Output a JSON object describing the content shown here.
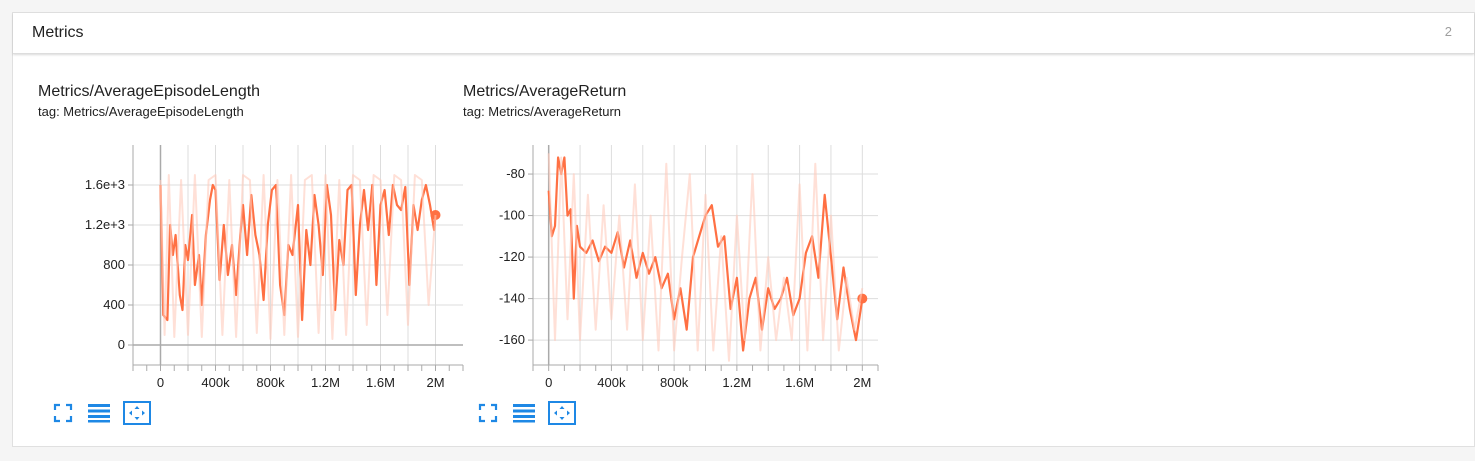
{
  "section": {
    "title": "Metrics",
    "count": "2"
  },
  "colors": {
    "line": "#ff7043",
    "faint": "#ffccbc",
    "icon": "#1e88e5",
    "grid": "#dddddd",
    "axis": "#aaaaaa"
  },
  "buttons": [
    {
      "icon": "fullscreen-icon"
    },
    {
      "icon": "toggle-log-scale-icon"
    },
    {
      "icon": "fit-domain-icon"
    }
  ],
  "cards": [
    {
      "title": "Metrics/AverageEpisodeLength",
      "tag": "tag: Metrics/AverageEpisodeLength"
    },
    {
      "title": "Metrics/AverageReturn",
      "tag": "tag: Metrics/AverageReturn"
    }
  ],
  "chart_data": [
    {
      "type": "line",
      "title": "Metrics/AverageEpisodeLength",
      "xlim": [
        -200000,
        2200000
      ],
      "ylim": [
        -200,
        2000
      ],
      "x_ticks": [
        0,
        200000,
        400000,
        600000,
        800000,
        1000000,
        1200000,
        1400000,
        1600000,
        1800000,
        2000000
      ],
      "x_tick_labels": [
        "0",
        "",
        "400k",
        "",
        "800k",
        "",
        "1.2M",
        "",
        "1.6M",
        "",
        "2M"
      ],
      "y_ticks": [
        0,
        400,
        800,
        1200,
        1600
      ],
      "y_tick_labels": [
        "0",
        "400",
        "800",
        "1.2e+3",
        "1.6e+3"
      ],
      "grid": true,
      "series": [
        {
          "role": "smoothed",
          "x": [
            0,
            20000,
            50000,
            70000,
            90000,
            110000,
            140000,
            160000,
            180000,
            200000,
            230000,
            250000,
            280000,
            300000,
            330000,
            360000,
            380000,
            400000,
            430000,
            460000,
            490000,
            520000,
            550000,
            580000,
            600000,
            630000,
            660000,
            690000,
            720000,
            750000,
            780000,
            810000,
            840000,
            870000,
            900000,
            930000,
            960000,
            1000000,
            1030000,
            1060000,
            1090000,
            1120000,
            1150000,
            1180000,
            1210000,
            1240000,
            1270000,
            1300000,
            1330000,
            1360000,
            1390000,
            1420000,
            1450000,
            1480000,
            1510000,
            1540000,
            1570000,
            1600000,
            1630000,
            1660000,
            1690000,
            1720000,
            1750000,
            1780000,
            1810000,
            1840000,
            1870000,
            1900000,
            1930000,
            1960000,
            1990000,
            2000000
          ],
          "y": [
            1600,
            300,
            250,
            1200,
            900,
            1100,
            500,
            350,
            1000,
            850,
            1300,
            600,
            900,
            400,
            1100,
            1450,
            1600,
            1550,
            650,
            1200,
            700,
            1000,
            500,
            1100,
            1400,
            900,
            1500,
            1100,
            900,
            450,
            1200,
            1550,
            1600,
            600,
            300,
            1000,
            900,
            1400,
            250,
            1150,
            800,
            1500,
            1200,
            700,
            1600,
            1300,
            350,
            1050,
            800,
            1550,
            1600,
            500,
            1200,
            1550,
            1150,
            1600,
            600,
            1400,
            1550,
            1100,
            1600,
            1400,
            1350,
            1580,
            600,
            1400,
            1150,
            1450,
            1600,
            1400,
            1150,
            1300
          ]
        },
        {
          "role": "raw",
          "x": [
            0,
            30000,
            60000,
            100000,
            150000,
            200000,
            250000,
            300000,
            350000,
            400000,
            450000,
            500000,
            550000,
            600000,
            650000,
            700000,
            750000,
            800000,
            850000,
            900000,
            950000,
            1000000,
            1050000,
            1100000,
            1150000,
            1200000,
            1250000,
            1300000,
            1350000,
            1400000,
            1450000,
            1500000,
            1550000,
            1600000,
            1650000,
            1700000,
            1750000,
            1800000,
            1850000,
            1900000,
            1950000,
            2000000
          ],
          "y": [
            1650,
            100,
            1700,
            80,
            1650,
            100,
            1700,
            80,
            1650,
            1700,
            100,
            1650,
            80,
            1700,
            1650,
            120,
            1700,
            60,
            1650,
            100,
            1700,
            80,
            1650,
            1700,
            120,
            1700,
            60,
            1650,
            100,
            1700,
            1650,
            200,
            1700,
            1650,
            300,
            1700,
            1650,
            200,
            1700,
            1650,
            400,
            1300
          ]
        }
      ]
    },
    {
      "type": "line",
      "title": "Metrics/AverageReturn",
      "xlim": [
        -100000,
        2100000
      ],
      "ylim": [
        -172,
        -66
      ],
      "x_ticks": [
        0,
        200000,
        400000,
        600000,
        800000,
        1000000,
        1200000,
        1400000,
        1600000,
        1800000,
        2000000
      ],
      "x_tick_labels": [
        "0",
        "",
        "400k",
        "",
        "800k",
        "",
        "1.2M",
        "",
        "1.6M",
        "",
        "2M"
      ],
      "y_ticks": [
        -80,
        -100,
        -120,
        -140,
        -160
      ],
      "y_tick_labels": [
        "-80",
        "-100",
        "-120",
        "-140",
        "-160"
      ],
      "grid": true,
      "series": [
        {
          "role": "smoothed",
          "x": [
            0,
            20000,
            40000,
            60000,
            80000,
            100000,
            120000,
            140000,
            160000,
            180000,
            200000,
            240000,
            280000,
            320000,
            360000,
            400000,
            440000,
            480000,
            520000,
            560000,
            600000,
            640000,
            680000,
            720000,
            760000,
            800000,
            840000,
            880000,
            920000,
            960000,
            1000000,
            1040000,
            1080000,
            1120000,
            1160000,
            1200000,
            1240000,
            1280000,
            1320000,
            1360000,
            1400000,
            1440000,
            1480000,
            1520000,
            1560000,
            1600000,
            1640000,
            1680000,
            1720000,
            1760000,
            1800000,
            1840000,
            1880000,
            1920000,
            1960000,
            1990000,
            2000000
          ],
          "y": [
            -88,
            -110,
            -105,
            -72,
            -80,
            -72,
            -100,
            -97,
            -140,
            -105,
            -115,
            -118,
            -112,
            -122,
            -115,
            -118,
            -108,
            -125,
            -112,
            -130,
            -118,
            -128,
            -120,
            -135,
            -128,
            -150,
            -135,
            -155,
            -120,
            -110,
            -100,
            -95,
            -115,
            -110,
            -145,
            -130,
            -165,
            -140,
            -130,
            -155,
            -135,
            -145,
            -140,
            -130,
            -148,
            -140,
            -118,
            -110,
            -130,
            -90,
            -120,
            -150,
            -125,
            -145,
            -160,
            -145,
            -140
          ]
        },
        {
          "role": "raw",
          "x": [
            0,
            40000,
            80000,
            120000,
            160000,
            200000,
            250000,
            300000,
            350000,
            400000,
            450000,
            500000,
            550000,
            600000,
            650000,
            700000,
            750000,
            800000,
            850000,
            900000,
            950000,
            1000000,
            1050000,
            1100000,
            1150000,
            1200000,
            1250000,
            1300000,
            1350000,
            1400000,
            1450000,
            1500000,
            1550000,
            1600000,
            1650000,
            1700000,
            1750000,
            1800000,
            1850000,
            1900000,
            1950000,
            2000000
          ],
          "y": [
            -70,
            -160,
            -72,
            -150,
            -80,
            -160,
            -90,
            -155,
            -95,
            -150,
            -100,
            -155,
            -85,
            -160,
            -100,
            -165,
            -75,
            -165,
            -120,
            -80,
            -165,
            -90,
            -165,
            -110,
            -170,
            -100,
            -160,
            -80,
            -165,
            -120,
            -160,
            -130,
            -160,
            -85,
            -165,
            -75,
            -160,
            -100,
            -165,
            -130,
            -155,
            -135
          ]
        }
      ]
    }
  ]
}
